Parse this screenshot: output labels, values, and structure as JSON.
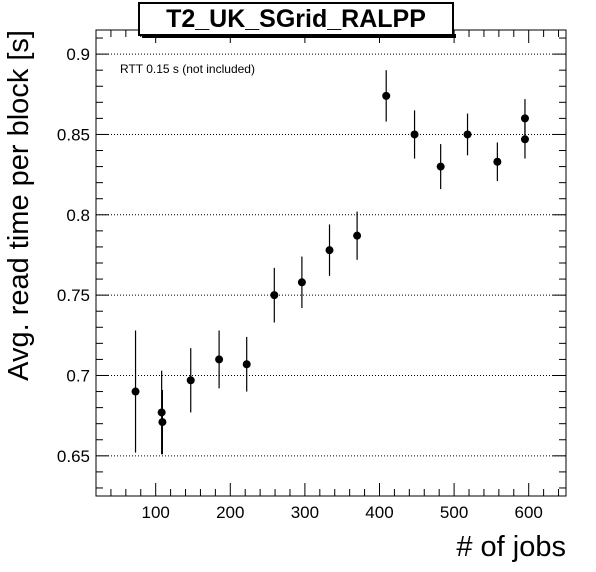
{
  "chart_data": {
    "type": "scatter",
    "title": "T2_UK_SGrid_RALPP",
    "xlabel": "# of jobs",
    "ylabel": "Avg. read time per block [s]",
    "annotation": "RTT 0.15 s (not included)",
    "xlim": [
      20,
      650
    ],
    "ylim": [
      0.625,
      0.915
    ],
    "x_ticks": [
      100,
      200,
      300,
      400,
      500,
      600
    ],
    "y_ticks": [
      0.65,
      0.7,
      0.75,
      0.8,
      0.85,
      0.9
    ],
    "x_tick_labels": [
      "100",
      "200",
      "300",
      "400",
      "500",
      "600"
    ],
    "y_tick_labels": [
      "0.65",
      "0.7",
      "0.75",
      "0.8",
      "0.85",
      "0.9"
    ],
    "grid": "horizontal dotted",
    "series": [
      {
        "points": [
          {
            "x": 73,
            "y": 0.69,
            "err": 0.038
          },
          {
            "x": 108,
            "y": 0.677,
            "err": 0.026
          },
          {
            "x": 109,
            "y": 0.671,
            "err": 0.02
          },
          {
            "x": 147,
            "y": 0.697,
            "err": 0.02
          },
          {
            "x": 185,
            "y": 0.71,
            "err": 0.018
          },
          {
            "x": 222,
            "y": 0.707,
            "err": 0.017
          },
          {
            "x": 259,
            "y": 0.75,
            "err": 0.017
          },
          {
            "x": 296,
            "y": 0.758,
            "err": 0.016
          },
          {
            "x": 333,
            "y": 0.778,
            "err": 0.016
          },
          {
            "x": 370,
            "y": 0.787,
            "err": 0.015
          },
          {
            "x": 409,
            "y": 0.874,
            "err": 0.016
          },
          {
            "x": 447,
            "y": 0.85,
            "err": 0.015
          },
          {
            "x": 482,
            "y": 0.83,
            "err": 0.014
          },
          {
            "x": 518,
            "y": 0.85,
            "err": 0.013
          },
          {
            "x": 558,
            "y": 0.833,
            "err": 0.012
          },
          {
            "x": 595,
            "y": 0.86,
            "err": 0.012
          },
          {
            "x": 595,
            "y": 0.847,
            "err": 0.012
          }
        ]
      }
    ]
  }
}
